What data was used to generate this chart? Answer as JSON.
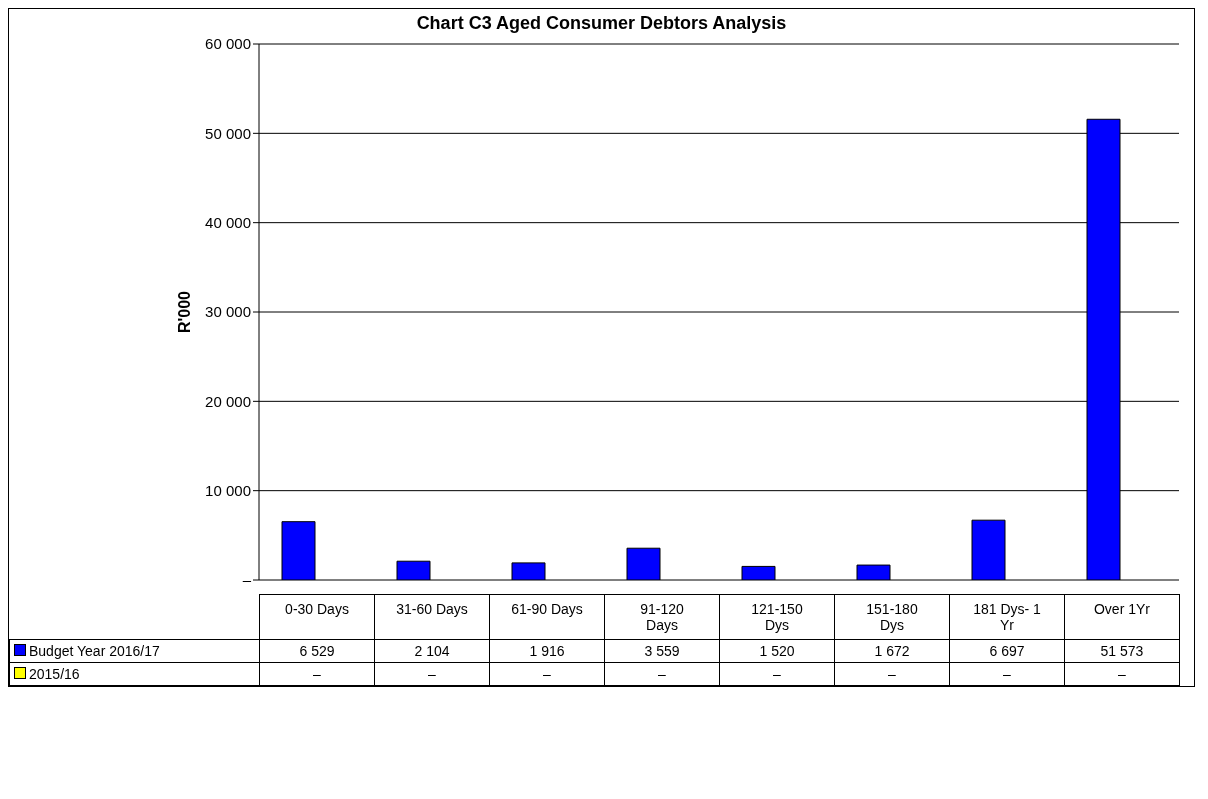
{
  "chart_data": {
    "type": "bar",
    "title": "Chart C3 Aged Consumer Debtors Analysis",
    "ylabel": "R'000",
    "categories": [
      "0-30 Days",
      "31-60 Days",
      "61-90 Days",
      "91-120 Days",
      "121-150 Dys",
      "151-180 Dys",
      "181 Dys- 1 Yr",
      "Over 1Yr"
    ],
    "series": [
      {
        "name": "Budget Year 2016/17",
        "color": "#0000ff",
        "values": [
          6529,
          2104,
          1916,
          3559,
          1520,
          1672,
          6697,
          51573
        ],
        "value_labels": [
          "6 529",
          "2 104",
          "1 916",
          "3 559",
          "1 520",
          "1 672",
          "6 697",
          "51 573"
        ]
      },
      {
        "name": "2015/16",
        "color": "#ffff00",
        "values": [
          0,
          0,
          0,
          0,
          0,
          0,
          0,
          0
        ],
        "value_labels": [
          "–",
          "–",
          "–",
          "–",
          "–",
          "–",
          "–",
          "–"
        ]
      }
    ],
    "ylim": [
      0,
      60000
    ],
    "yticks": [
      {
        "value": 0,
        "label": "–"
      },
      {
        "value": 10000,
        "label": "10 000"
      },
      {
        "value": 20000,
        "label": "20 000"
      },
      {
        "value": 30000,
        "label": "30 000"
      },
      {
        "value": 40000,
        "label": "40 000"
      },
      {
        "value": 50000,
        "label": "50 000"
      },
      {
        "value": 60000,
        "label": "60 000"
      }
    ],
    "grid": "y",
    "legend": "bottom"
  }
}
